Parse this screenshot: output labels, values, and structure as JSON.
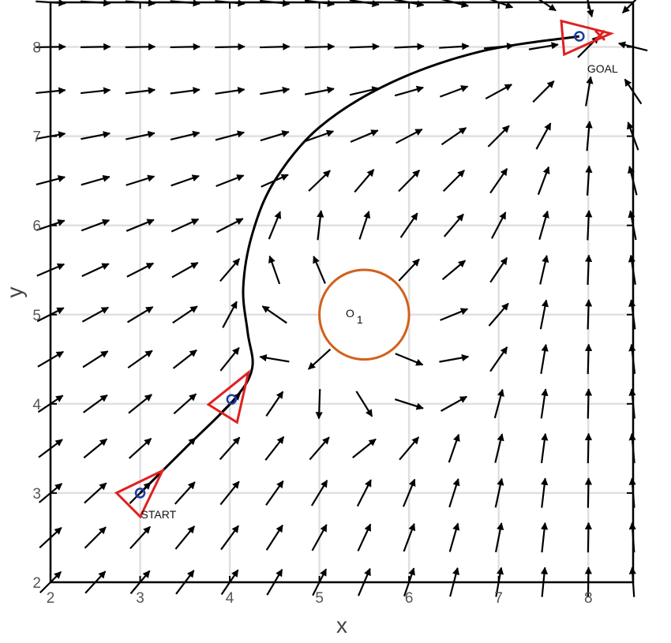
{
  "chart_data": {
    "type": "vector-field",
    "title": "",
    "xlabel": "x",
    "ylabel": "y",
    "xlim": [
      2,
      8.5
    ],
    "ylim": [
      2,
      8.5
    ],
    "xticks": [
      "2",
      "3",
      "4",
      "5",
      "6",
      "7",
      "8"
    ],
    "yticks": [
      "2",
      "3",
      "4",
      "5",
      "6",
      "7",
      "8"
    ],
    "grid": true,
    "field": {
      "goal": [
        8.1,
        8.1
      ],
      "obstacle_center": [
        5.5,
        5.0
      ],
      "spacing": 0.5
    },
    "obstacle": {
      "name": "O",
      "subscript": "1",
      "center": [
        5.5,
        5.0
      ],
      "radius": 0.5,
      "color": "#d2601a"
    },
    "path": {
      "points": [
        [
          3.0,
          3.0
        ],
        [
          3.5,
          3.5
        ],
        [
          4.05,
          4.05
        ],
        [
          4.25,
          4.4
        ],
        [
          4.2,
          4.8
        ],
        [
          4.15,
          5.3
        ],
        [
          4.25,
          5.9
        ],
        [
          4.5,
          6.5
        ],
        [
          5.0,
          7.1
        ],
        [
          5.8,
          7.6
        ],
        [
          6.8,
          7.95
        ],
        [
          7.9,
          8.12
        ]
      ],
      "color": "#000000"
    },
    "robots": [
      {
        "pos": [
          3.0,
          3.0
        ],
        "heading_deg": 45
      },
      {
        "pos": [
          4.02,
          4.05
        ],
        "heading_deg": 58
      },
      {
        "pos": [
          7.9,
          8.12
        ],
        "heading_deg": 5
      }
    ],
    "robot_color": "#e02020",
    "marker_color": "#1a3aa8",
    "goal_marker": [
      8.13,
      8.13
    ],
    "labels": {
      "start": "START",
      "goal": "GOAL"
    }
  }
}
